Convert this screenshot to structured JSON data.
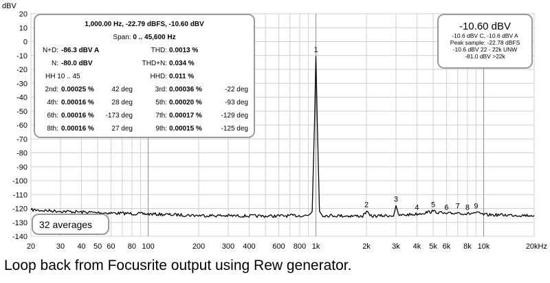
{
  "chart_data": {
    "type": "line",
    "ylabel": "dBV",
    "x_scale": "log",
    "xlim": [
      20,
      20000
    ],
    "ylim": [
      -140,
      20
    ],
    "y_ticks": [
      20,
      10,
      0,
      -10,
      -20,
      -30,
      -40,
      -50,
      -60,
      -70,
      -80,
      -90,
      -100,
      -110,
      -120,
      -130,
      -140
    ],
    "x_tick_values": [
      20,
      30,
      40,
      50,
      60,
      80,
      100,
      200,
      300,
      400,
      600,
      800,
      1000,
      2000,
      3000,
      4000,
      5000,
      6000,
      8000,
      10000,
      20000
    ],
    "x_tick_labels": [
      "20",
      "30",
      "40",
      "50",
      "60",
      "80",
      "100",
      "200",
      "300",
      "400",
      "600",
      "800",
      "1k",
      "2k",
      "3k",
      "4k",
      "5k",
      "6k",
      "8k",
      "10k",
      "20kHz"
    ],
    "grid": true,
    "noise_floor_dbv": -125,
    "series": [
      {
        "points": [
          [
            20,
            -121
          ],
          [
            30,
            -122
          ],
          [
            50,
            -123
          ],
          [
            100,
            -124
          ],
          [
            200,
            -125
          ],
          [
            500,
            -125.5
          ],
          [
            900,
            -125
          ],
          [
            950,
            -122
          ],
          [
            980,
            -60
          ],
          [
            1000,
            -10.6
          ],
          [
            1020,
            -60
          ],
          [
            1050,
            -122
          ],
          [
            1100,
            -125
          ],
          [
            1900,
            -125.5
          ],
          [
            2000,
            -122
          ],
          [
            2100,
            -125.5
          ],
          [
            2900,
            -125
          ],
          [
            3000,
            -118
          ],
          [
            3100,
            -125
          ],
          [
            4000,
            -124
          ],
          [
            5000,
            -122
          ],
          [
            6000,
            -124
          ],
          [
            7000,
            -123
          ],
          [
            8000,
            -124
          ],
          [
            9000,
            -123
          ],
          [
            10000,
            -124.5
          ],
          [
            20000,
            -125
          ]
        ]
      }
    ],
    "harmonic_markers": [
      {
        "label": "1",
        "freq": 1000,
        "level": -10.6
      },
      {
        "label": "2",
        "freq": 2000,
        "level": -122
      },
      {
        "label": "3",
        "freq": 3000,
        "level": -118
      },
      {
        "label": "4",
        "freq": 4000,
        "level": -124
      },
      {
        "label": "5",
        "freq": 5000,
        "level": -122
      },
      {
        "label": "6",
        "freq": 6000,
        "level": -124
      },
      {
        "label": "7",
        "freq": 7000,
        "level": -123
      },
      {
        "label": "8",
        "freq": 8000,
        "level": -124
      },
      {
        "label": "9",
        "freq": 9000,
        "level": -123
      }
    ]
  },
  "info_box": {
    "line1": "1,000.00 Hz, -22.79 dBFS, -10.60 dBV",
    "span_label": "Span:",
    "span_value": "0 .. 45,600 Hz",
    "nd_label": "N+D:",
    "nd_value": "-86.3 dBV A",
    "thd_label": "THD:",
    "thd_value": "0.0013 %",
    "n_label": "N:",
    "n_value": "-80.0 dBV",
    "thdn_label": "THD+N:",
    "thdn_value": "0.034 %",
    "hh_label": "HH 10 .. 45",
    "hhd_label": "HHD:",
    "hhd_value": "0.011 %",
    "harmonics": [
      {
        "label": "2nd:",
        "value": "0.00025 %",
        "deg": "42 deg"
      },
      {
        "label": "3rd:",
        "value": "0.00036 %",
        "deg": "-22 deg"
      },
      {
        "label": "4th:",
        "value": "0.00016 %",
        "deg": "28 deg"
      },
      {
        "label": "5th:",
        "value": "0.00020 %",
        "deg": "-93 deg"
      },
      {
        "label": "6th:",
        "value": "0.00016 %",
        "deg": "-173 deg"
      },
      {
        "label": "7th:",
        "value": "0.00017 %",
        "deg": "-129 deg"
      },
      {
        "label": "8th:",
        "value": "0.00016 %",
        "deg": "27 deg"
      },
      {
        "label": "9th:",
        "value": "0.00015 %",
        "deg": "-125 deg"
      }
    ]
  },
  "level_box": {
    "main": "-10.60 dBV",
    "line1": "-10.6 dBV C, -10.6 dBV A",
    "line2": "Peak sample: -22.78 dBFS",
    "line3": "-10.6 dBV 22 - 22k UNW",
    "line4": "-81.0 dBV >22k"
  },
  "averages_label": "32 averages",
  "caption": "Loop back from Focusrite output using Rew generator."
}
